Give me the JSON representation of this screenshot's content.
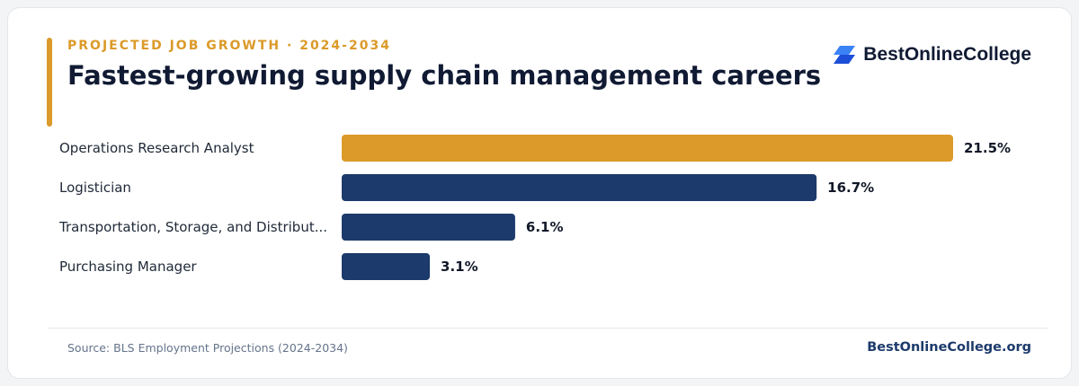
{
  "header": {
    "eyebrow": "PROJECTED JOB GROWTH · 2024-2034",
    "title": "Fastest-growing supply chain management careers"
  },
  "brand": {
    "name": "BestOnlineCollege",
    "logo_icon": "stacked-parallelogram-logo-icon"
  },
  "footer": {
    "source": "Source: BLS Employment Projections (2024-2034)",
    "site": "BestOnlineCollege.org"
  },
  "colors": {
    "accent": "#db9a29",
    "navy": "#1c3a6b",
    "title": "#101a33",
    "label": "#1f2937",
    "muted": "#64748b"
  },
  "chart_data": {
    "type": "bar",
    "orientation": "horizontal",
    "categories": [
      "Operations Research Analyst",
      "Logistician",
      "Transportation, Storage, and Distribut...",
      "Purchasing Manager"
    ],
    "values": [
      21.5,
      16.7,
      6.1,
      3.1
    ],
    "value_labels": [
      "21.5%",
      "16.7%",
      "6.1%",
      "3.1%"
    ],
    "highlight_index": 0,
    "grid": false,
    "legend": "none"
  }
}
